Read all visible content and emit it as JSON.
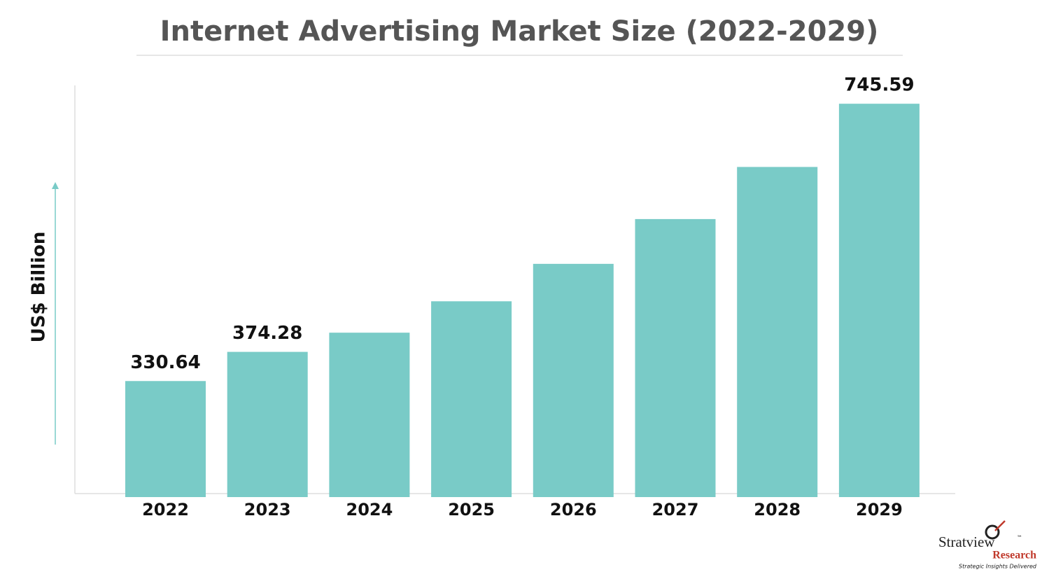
{
  "chart_data": {
    "type": "bar",
    "title": "Internet Advertising Market Size (2022-2029)",
    "y_label": "US$ Billion",
    "categories": [
      "2022",
      "2023",
      "2024",
      "2025",
      "2026",
      "2027",
      "2028",
      "2029"
    ],
    "values": [
      330.64,
      374.28,
      403,
      450,
      506,
      573,
      651,
      745.59
    ],
    "value_labels": [
      "330.64",
      "374.28",
      null,
      null,
      null,
      null,
      null,
      "745.59"
    ],
    "color": "#79cbc7",
    "ylim": [
      157,
      773
    ]
  },
  "logo": {
    "name": "Stratview",
    "trademark": "™",
    "sub": "Research",
    "tagline": "Strategic Insights Delivered"
  }
}
